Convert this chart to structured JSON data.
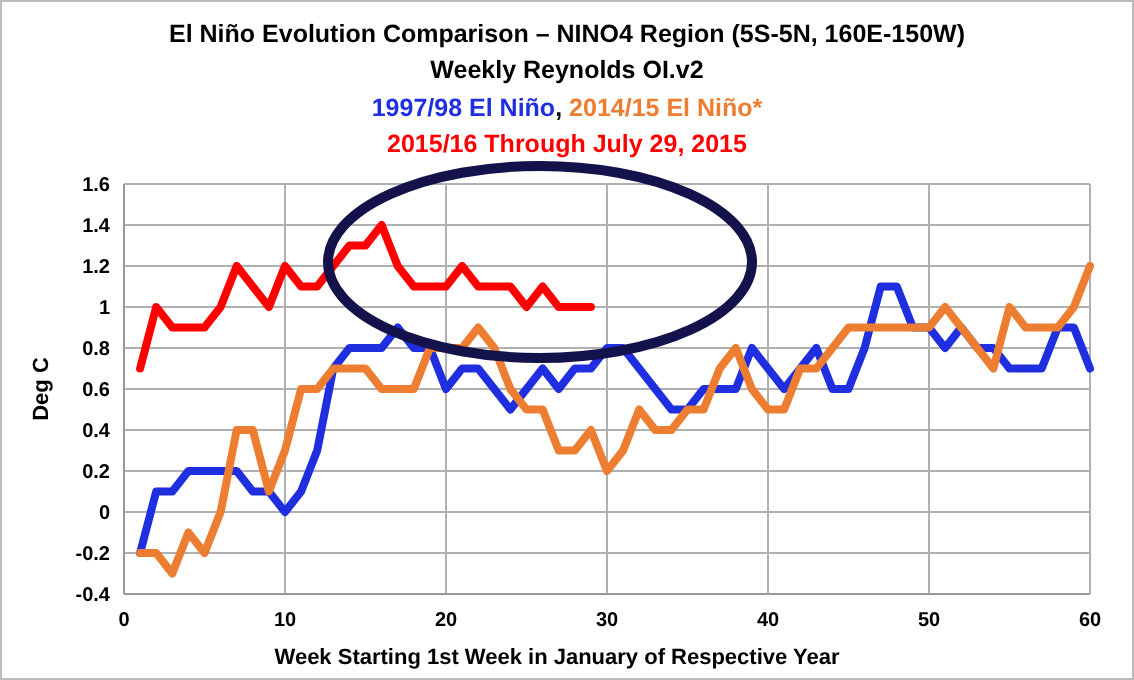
{
  "chart_data": {
    "type": "line",
    "title": "El Niño Evolution Comparison – NINO4 Region (5S-5N, 160E-150W)",
    "subtitle": "Weekly Reynolds OI.v2",
    "xlabel": "Week Starting 1st Week in January of Respective Year",
    "ylabel": "Deg C",
    "x": [
      1,
      2,
      3,
      4,
      5,
      6,
      7,
      8,
      9,
      10,
      11,
      12,
      13,
      14,
      15,
      16,
      17,
      18,
      19,
      20,
      21,
      22,
      23,
      24,
      25,
      26,
      27,
      28,
      29,
      30,
      31,
      32,
      33,
      34,
      35,
      36,
      37,
      38,
      39,
      40,
      41,
      42,
      43,
      44,
      45,
      46,
      47,
      48,
      49,
      50,
      51,
      52,
      53,
      54,
      55,
      56,
      57,
      58,
      59,
      60
    ],
    "series": [
      {
        "name": "1997/98 El Niño",
        "color": "#1f2fe0",
        "values": [
          -0.2,
          0.1,
          0.1,
          0.2,
          0.2,
          0.2,
          0.2,
          0.1,
          0.1,
          0.0,
          0.1,
          0.3,
          0.7,
          0.8,
          0.8,
          0.8,
          0.9,
          0.8,
          0.8,
          0.6,
          0.7,
          0.7,
          0.6,
          0.5,
          0.6,
          0.7,
          0.6,
          0.7,
          0.7,
          0.8,
          0.8,
          0.7,
          0.6,
          0.5,
          0.5,
          0.6,
          0.6,
          0.6,
          0.8,
          0.7,
          0.6,
          0.7,
          0.8,
          0.6,
          0.6,
          0.8,
          1.1,
          1.1,
          0.9,
          0.9,
          0.8,
          0.9,
          0.8,
          0.8,
          0.7,
          0.7,
          0.7,
          0.9,
          0.9,
          0.7
        ]
      },
      {
        "name": "2014/15 El Niño*",
        "color": "#ed7d31",
        "values": [
          -0.2,
          -0.2,
          -0.3,
          -0.1,
          -0.2,
          0.0,
          0.4,
          0.4,
          0.1,
          0.3,
          0.6,
          0.6,
          0.7,
          0.7,
          0.7,
          0.6,
          0.6,
          0.6,
          0.8,
          0.8,
          0.8,
          0.9,
          0.8,
          0.6,
          0.5,
          0.5,
          0.3,
          0.3,
          0.4,
          0.2,
          0.3,
          0.5,
          0.4,
          0.4,
          0.5,
          0.5,
          0.7,
          0.8,
          0.6,
          0.5,
          0.5,
          0.7,
          0.7,
          0.8,
          0.9,
          0.9,
          0.9,
          0.9,
          0.9,
          0.9,
          1.0,
          0.9,
          0.8,
          0.7,
          1.0,
          0.9,
          0.9,
          0.9,
          1.0,
          1.2
        ]
      },
      {
        "name": "2015/16 Through July 29, 2015",
        "color": "#ff0000",
        "values": [
          0.7,
          1.0,
          0.9,
          0.9,
          0.9,
          1.0,
          1.2,
          1.1,
          1.0,
          1.2,
          1.1,
          1.1,
          1.2,
          1.3,
          1.3,
          1.4,
          1.2,
          1.1,
          1.1,
          1.1,
          1.2,
          1.1,
          1.1,
          1.1,
          1.0,
          1.1,
          1.0,
          1.0,
          1.0,
          null,
          null,
          null,
          null,
          null,
          null,
          null,
          null,
          null,
          null,
          null,
          null,
          null,
          null,
          null,
          null,
          null,
          null,
          null,
          null,
          null,
          null,
          null,
          null,
          null,
          null,
          null,
          null,
          null,
          null,
          null
        ]
      }
    ],
    "xlim": [
      0,
      60
    ],
    "xticks": [
      0,
      10,
      20,
      30,
      40,
      50,
      60
    ],
    "ylim": [
      -0.4,
      1.6
    ],
    "yticks": [
      -0.4,
      -0.2,
      0,
      0.2,
      0.4,
      0.6,
      0.8,
      1,
      1.2,
      1.4,
      1.6
    ],
    "annotations": [
      ","
    ],
    "grid": true,
    "legend": "top",
    "marker": "none",
    "line_style": "solid"
  }
}
